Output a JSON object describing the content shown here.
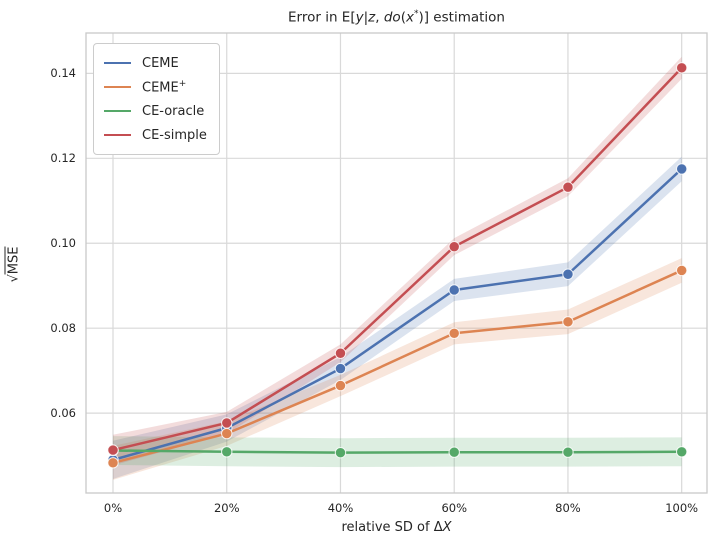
{
  "figure": {
    "title_segments": [
      {
        "text": "Error in E[",
        "style": "normal"
      },
      {
        "text": "y",
        "style": "italic"
      },
      {
        "text": "|",
        "style": "normal"
      },
      {
        "text": "z",
        "style": "italic"
      },
      {
        "text": ", ",
        "style": "normal"
      },
      {
        "text": "do",
        "style": "italic"
      },
      {
        "text": "(",
        "style": "normal"
      },
      {
        "text": "x",
        "style": "italic"
      },
      {
        "text": "*",
        "style": "sup"
      },
      {
        "text": ")] estimation",
        "style": "normal"
      }
    ],
    "ylabel_segments": [
      {
        "text": "√",
        "style": "normal"
      },
      {
        "text": "MSE",
        "style": "overline"
      }
    ],
    "xlabel_segments": [
      {
        "text": "relative SD of Δ",
        "style": "normal"
      },
      {
        "text": "X",
        "style": "italic"
      }
    ]
  },
  "chart_data": {
    "type": "line",
    "title": "Error in E[y|z, do(x*)] estimation",
    "xlabel": "relative SD of ΔX",
    "ylabel": "sqrt(MSE)",
    "grid": true,
    "legend_position": "upper-left",
    "background": "#ffffff",
    "grid_color": "#d9d9d9",
    "spine_color": "#c9c9c9",
    "text_color": "#262626",
    "x_values": [
      0,
      20,
      40,
      60,
      80,
      100
    ],
    "x_tick_labels": [
      "0%",
      "20%",
      "40%",
      "60%",
      "80%",
      "100%"
    ],
    "y_ticks": [
      0.06,
      0.08,
      0.1,
      0.12,
      0.14
    ],
    "y_tick_labels": [
      "0.06",
      "0.08",
      "0.10",
      "0.12",
      "0.14"
    ],
    "xlim": [
      -4.75,
      104.45
    ],
    "ylim": [
      0.0412,
      0.1495
    ],
    "band_alpha": 0.2,
    "series": [
      {
        "name": "CEME",
        "label_segments": [
          {
            "text": "CEME",
            "style": "normal"
          }
        ],
        "color": "#4C72B0",
        "values": [
          0.049,
          0.0565,
          0.0705,
          0.089,
          0.0927,
          0.1175
        ],
        "band_halfwidth": [
          0.0045,
          0.0032,
          0.0027,
          0.0026,
          0.0028,
          0.0029
        ]
      },
      {
        "name": "CEME+",
        "label_segments": [
          {
            "text": "CEME",
            "style": "normal"
          },
          {
            "text": "+",
            "style": "sup"
          }
        ],
        "color": "#DD8452",
        "values": [
          0.0483,
          0.0552,
          0.0665,
          0.0788,
          0.0815,
          0.0936
        ],
        "band_halfwidth": [
          0.004,
          0.0029,
          0.0025,
          0.0026,
          0.0029,
          0.0029
        ]
      },
      {
        "name": "CE-oracle",
        "label_segments": [
          {
            "text": "CE-oracle",
            "style": "normal"
          }
        ],
        "color": "#55A868",
        "values": [
          0.0512,
          0.0509,
          0.0507,
          0.0508,
          0.0508,
          0.0509
        ],
        "band_halfwidth": [
          0.0034,
          0.0034,
          0.0034,
          0.0034,
          0.0034,
          0.0034
        ]
      },
      {
        "name": "CE-simple",
        "label_segments": [
          {
            "text": "CE-simple",
            "style": "normal"
          }
        ],
        "color": "#C44E52",
        "values": [
          0.0513,
          0.0577,
          0.0741,
          0.0992,
          0.1132,
          0.1413
        ],
        "band_halfwidth": [
          0.0036,
          0.0026,
          0.0021,
          0.002,
          0.0021,
          0.0026
        ]
      }
    ]
  }
}
